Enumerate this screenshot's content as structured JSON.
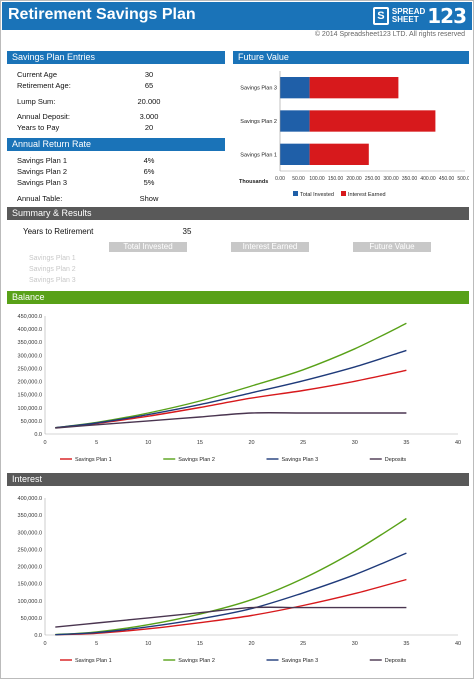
{
  "header": {
    "title": "Retirement Savings Plan",
    "logo_top": "SPREAD",
    "logo_bottom": "SHEET",
    "logo_num": "123",
    "copyright": "© 2014 Spreadsheet123 LTD. All rights reserved"
  },
  "entries": {
    "section": "Savings Plan Entries",
    "rows": [
      {
        "label": "Current Age",
        "value": "30"
      },
      {
        "label": "Retirement Age:",
        "value": "65"
      },
      {
        "label": "Lump Sum:",
        "value": "20.000"
      },
      {
        "label": "Annual Deposit:",
        "value": "3.000"
      },
      {
        "label": "Years to Pay",
        "value": "20"
      }
    ]
  },
  "rates": {
    "section": "Annual Return Rate",
    "rows": [
      {
        "label": "Savings Plan 1",
        "value": "4%"
      },
      {
        "label": "Savings Plan 2",
        "value": "6%"
      },
      {
        "label": "Savings Plan 3",
        "value": "5%"
      }
    ],
    "table_label": "Annual Table:",
    "table_value": "Show"
  },
  "future": {
    "section": "Future Value",
    "unit": "Thousands",
    "legend": [
      "Total Invested",
      "Interest Earned"
    ],
    "colors": {
      "invested": "#1f5fa8",
      "interest": "#d7191c"
    }
  },
  "summary": {
    "section": "Summary & Results",
    "years_label": "Years to Retirement",
    "years_value": "35",
    "headers": [
      "Total Invested",
      "Interest Earned",
      "Future Value"
    ],
    "plans": [
      "Savings Plan 1",
      "Savings Plan 2",
      "Savings Plan 3"
    ]
  },
  "balance": {
    "section": "Balance"
  },
  "interest": {
    "section": "Interest"
  },
  "colors": {
    "plan1": "#d7191c",
    "plan2": "#58a118",
    "plan3": "#1f3a7a",
    "deposits": "#4a3550",
    "header_blue": "#1a73b8",
    "header_gray": "#595959",
    "header_green": "#58a118"
  },
  "chart_data": [
    {
      "type": "bar",
      "orientation": "horizontal",
      "stacked": true,
      "title": "Future Value",
      "xlabel": "Thousands",
      "categories": [
        "Savings Plan 3",
        "Savings Plan 2",
        "Savings Plan 1"
      ],
      "series": [
        {
          "name": "Total Invested",
          "values": [
            80,
            80,
            80
          ]
        },
        {
          "name": "Interest Earned",
          "values": [
            240,
            340,
            160
          ]
        }
      ],
      "xlim": [
        0,
        500
      ],
      "xticks": [
        "0.00",
        "50.00",
        "100.00",
        "150.00",
        "200.00",
        "250.00",
        "300.00",
        "350.00",
        "400.00",
        "450.00",
        "500.00"
      ],
      "legend": "bottom"
    },
    {
      "type": "line",
      "title": "Balance",
      "xlim": [
        0,
        40
      ],
      "ylim": [
        0,
        450000
      ],
      "xticks": [
        "0",
        "5",
        "10",
        "15",
        "20",
        "25",
        "30",
        "35",
        "40"
      ],
      "yticks": [
        "0.0",
        "50,000.0",
        "100,000.0",
        "150,000.0",
        "200,000.0",
        "250,000.0",
        "300,000.0",
        "350,000.0",
        "400,000.0",
        "450,000.0"
      ],
      "x": [
        1,
        5,
        10,
        15,
        20,
        25,
        30,
        35
      ],
      "series": [
        {
          "name": "Savings Plan 1",
          "values": [
            23800,
            40000,
            68000,
            101000,
            137000,
            166000,
            201000,
            243000
          ]
        },
        {
          "name": "Savings Plan 2",
          "values": [
            24200,
            44000,
            80000,
            126000,
            183000,
            245000,
            325000,
            422000
          ]
        },
        {
          "name": "Savings Plan 3",
          "values": [
            24000,
            42000,
            74000,
            112000,
            157000,
            203000,
            256000,
            319000
          ]
        },
        {
          "name": "Deposits",
          "values": [
            23000,
            35000,
            50000,
            65000,
            80000,
            80000,
            80000,
            80000
          ]
        }
      ],
      "legend": "bottom"
    },
    {
      "type": "line",
      "title": "Interest",
      "xlim": [
        0,
        40
      ],
      "ylim": [
        0,
        400000
      ],
      "xticks": [
        "0",
        "5",
        "10",
        "15",
        "20",
        "25",
        "30",
        "35",
        "40"
      ],
      "yticks": [
        "0.0",
        "50,000.0",
        "100,000.0",
        "150,000.0",
        "200,000.0",
        "250,000.0",
        "300,000.0",
        "350,000.0",
        "400,000.0"
      ],
      "x": [
        1,
        5,
        10,
        15,
        20,
        25,
        30,
        35
      ],
      "series": [
        {
          "name": "Savings Plan 1",
          "values": [
            800,
            5000,
            18000,
            36000,
            57000,
            86000,
            121000,
            162000
          ]
        },
        {
          "name": "Savings Plan 2",
          "values": [
            1200,
            9000,
            30000,
            61000,
            103000,
            165000,
            245000,
            340000
          ]
        },
        {
          "name": "Savings Plan 3",
          "values": [
            1000,
            7000,
            24000,
            47000,
            77000,
            123000,
            176000,
            239000
          ]
        },
        {
          "name": "Deposits",
          "values": [
            23000,
            35000,
            50000,
            65000,
            80000,
            80000,
            80000,
            80000
          ]
        }
      ],
      "legend": "bottom"
    }
  ]
}
